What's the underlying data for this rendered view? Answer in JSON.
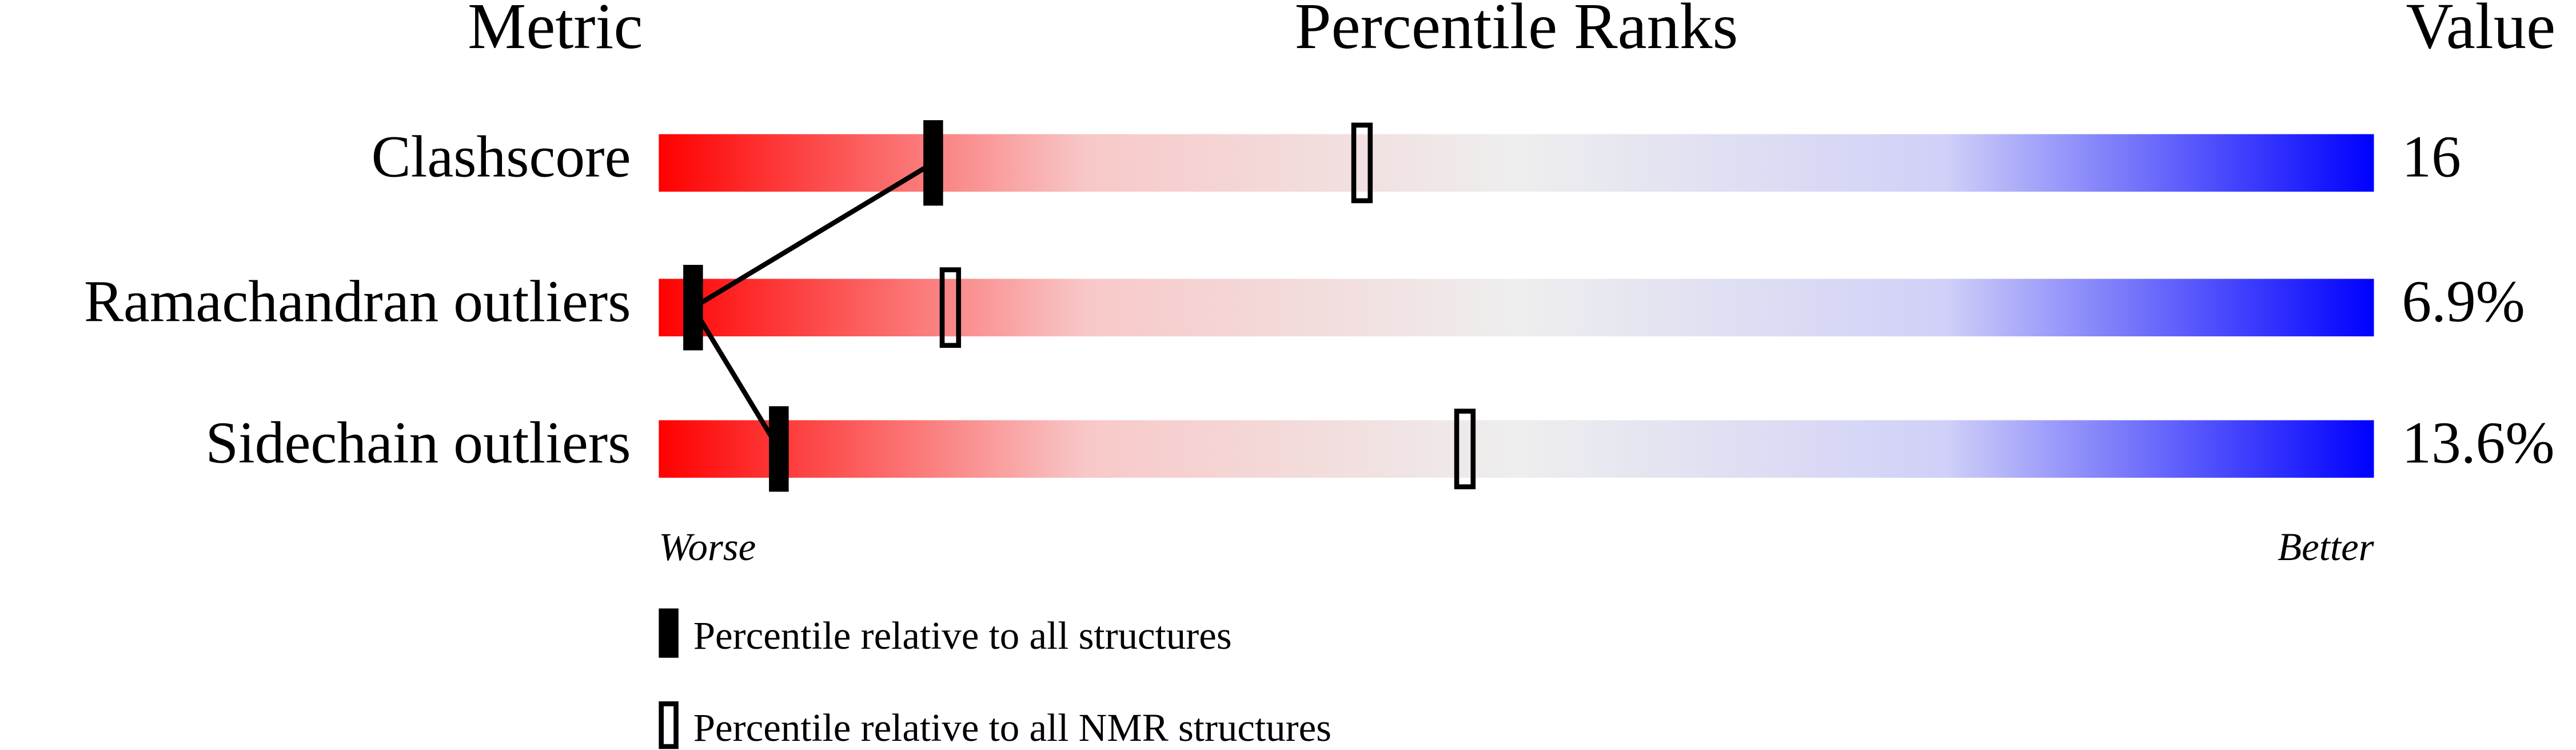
{
  "chart_data": {
    "type": "percentile",
    "headers": {
      "metric": "Metric",
      "ranks": "Percentile Ranks",
      "value": "Value"
    },
    "categories": [
      "Clashscore",
      "Ramachandran outliers",
      "Sidechain outliers"
    ],
    "value_column": [
      "16",
      "6.9%",
      "13.6%"
    ],
    "xlim": [
      0,
      100
    ],
    "axis_ends": {
      "worse": "Worse",
      "better": "Better"
    },
    "gradient": [
      "#ff0000",
      "#f8c8c8",
      "#eeeeee",
      "#d0d0f8",
      "#0000ff"
    ],
    "series": [
      {
        "name": "Percentile relative to all structures",
        "style": "filled",
        "color": "#000000",
        "values": [
          16,
          2,
          7
        ]
      },
      {
        "name": "Percentile relative to all NMR structures",
        "style": "open",
        "color": "#000000",
        "values": [
          41,
          17,
          47
        ]
      }
    ]
  }
}
